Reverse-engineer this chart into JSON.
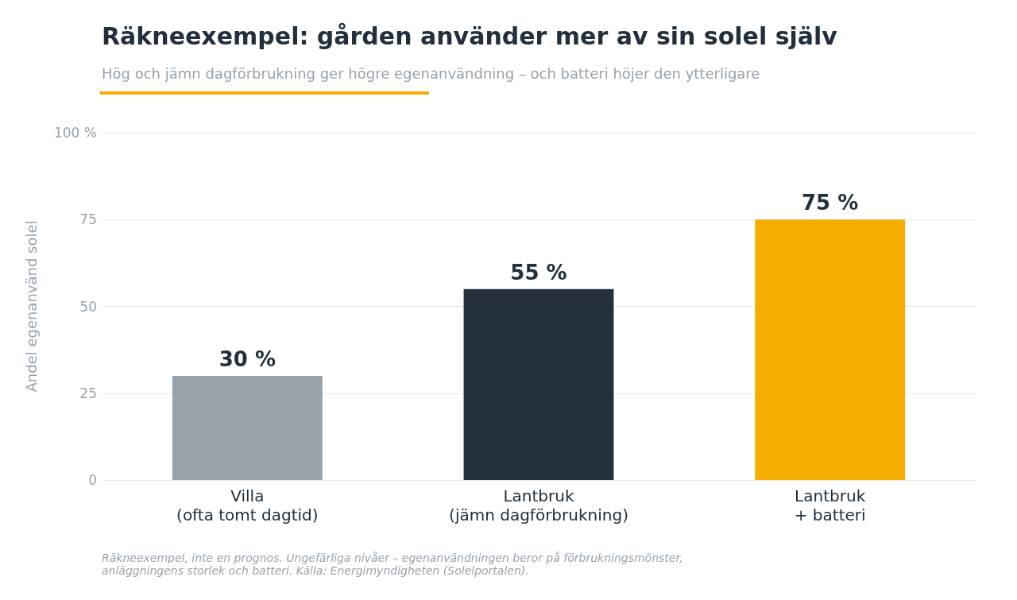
{
  "chart_data": {
    "type": "bar",
    "title": "Räkneexempel: gården använder mer av sin solel själv",
    "subtitle": "Hög och jämn dagförbrukning ger högre egenanvändning – och batteri höjer den ytterligare",
    "ylabel": "Andel egenanvänd solel",
    "categories": [
      "Villa\n(ofta tomt dagtid)",
      "Lantbruk\n(jämn dagförbrukning)",
      "Lantbruk\n+ batteri"
    ],
    "values": [
      30,
      55,
      75
    ],
    "colors": [
      "#98a2ab",
      "#232f3a",
      "#f5ae00"
    ],
    "value_labels": [
      "30 %",
      "55 %",
      "75 %"
    ],
    "ylim": [
      0,
      100
    ],
    "yticks": [
      0,
      25,
      50,
      75,
      {
        "value": 100,
        "label": "100 %"
      }
    ],
    "grid": "y",
    "annotations": [
      "Räkneexempel, inte en prognos. Ungefärliga nivåer – egenanvändningen beror på förbrukningsmönster,\nanläggningens storlek och batteri. Källa: Energimyndigheten (Solelportalen)."
    ]
  }
}
